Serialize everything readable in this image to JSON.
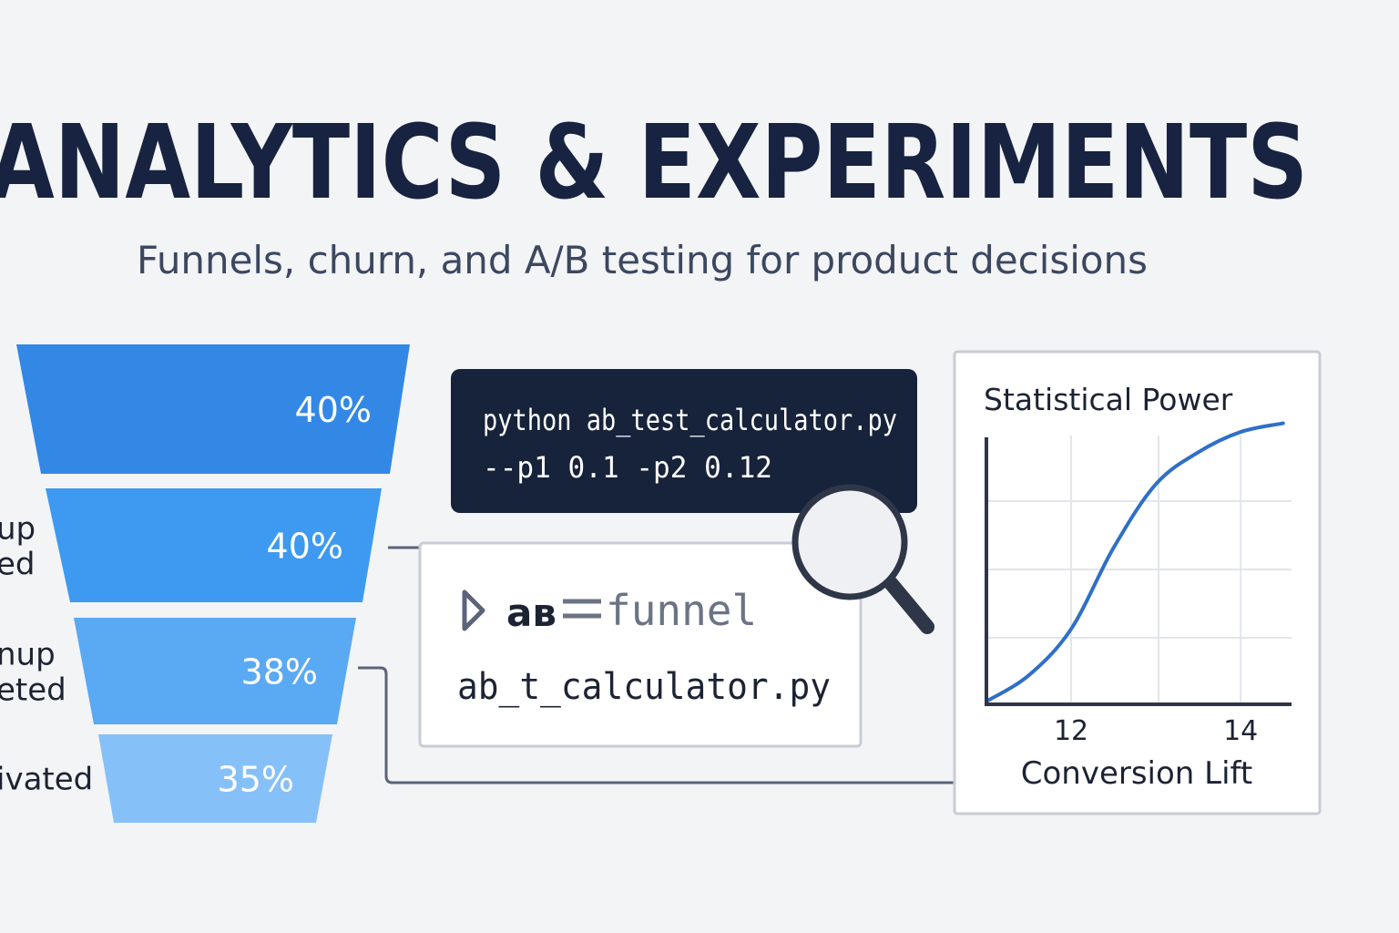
{
  "header": {
    "title": "ANALYTICS & EXPERIMENTS",
    "subtitle": "Funnels, churn, and A/B testing for product decisions"
  },
  "terminal": {
    "lines": [
      "python ab_test_calculator.py",
      "--p1 0.1  -p2 0.12"
    ]
  },
  "file_panel": {
    "logo": "aʙ",
    "name": "funnel",
    "file": "ab_t_calculator.py"
  },
  "chart_data": [
    {
      "type": "funnel",
      "categories": [
        null,
        "up\ned",
        "nup\neted",
        "ivated"
      ],
      "values": [
        40,
        40,
        38,
        35
      ],
      "value_labels": [
        "40%",
        "40%",
        "38%",
        "35%"
      ],
      "colors": [
        "#3388e6",
        "#3d9af0",
        "#5aa9f3",
        "#86c0f8"
      ]
    },
    {
      "type": "line",
      "title": "Statistical Power",
      "x_label": "Conversion Lift",
      "x": [
        11,
        11.5,
        12,
        12.5,
        13,
        13.5,
        14,
        14.5
      ],
      "values": [
        0.01,
        0.1,
        0.26,
        0.54,
        0.76,
        0.87,
        0.94,
        0.97
      ],
      "color": "#2f6fc7",
      "xlim": [
        11,
        14.6
      ],
      "ylim": [
        0,
        1
      ],
      "xticks": [
        12,
        14
      ]
    }
  ]
}
